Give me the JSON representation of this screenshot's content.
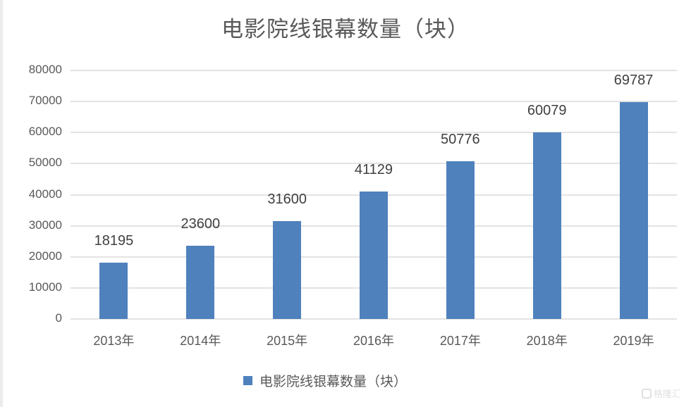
{
  "chart_data": {
    "type": "bar",
    "title": "电影院线银幕数量（块）",
    "categories": [
      "2013年",
      "2014年",
      "2015年",
      "2016年",
      "2017年",
      "2018年",
      "2019年"
    ],
    "series": [
      {
        "name": "电影院线银幕数量（块）",
        "values": [
          18195,
          23600,
          31600,
          41129,
          50776,
          60079,
          69787
        ],
        "color": "#4f81bd"
      }
    ],
    "data_labels": [
      "18195",
      "23600",
      "31600",
      "41129",
      "50776",
      "60079",
      "69787"
    ],
    "xlabel": "",
    "ylabel": "",
    "ylim": [
      0,
      80000
    ],
    "yticks": [
      "0",
      "10000",
      "20000",
      "30000",
      "40000",
      "50000",
      "60000",
      "70000",
      "80000"
    ],
    "grid": true,
    "legend_position": "bottom"
  },
  "watermark": "格隆汇"
}
